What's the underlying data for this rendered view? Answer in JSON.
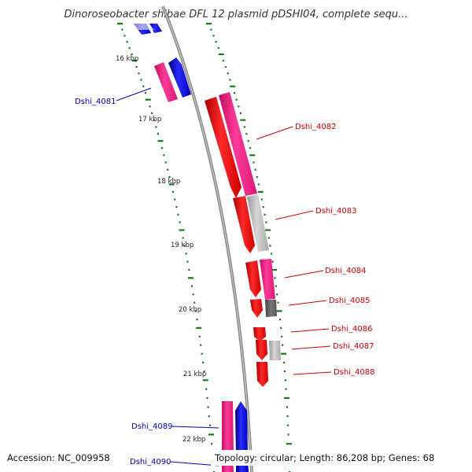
{
  "title": "Dinoroseobacter shibae DFL 12 plasmid pDSHI04, complete sequ...",
  "footer": {
    "accession": "Accession: NC_009958",
    "topology": "Topology: circular; Length: 86,208 bp; Genes: 68"
  },
  "scale_labels": [
    "16 kbp",
    "17 kbp",
    "18 kbp",
    "19 kbp",
    "20 kbp",
    "21 kbp",
    "22 kbp"
  ],
  "gene_labels": [
    {
      "id": "Dshi_4081",
      "strand": "minus"
    },
    {
      "id": "Dshi_4082",
      "strand": "plus"
    },
    {
      "id": "Dshi_4083",
      "strand": "plus"
    },
    {
      "id": "Dshi_4084",
      "strand": "plus"
    },
    {
      "id": "Dshi_4085",
      "strand": "plus"
    },
    {
      "id": "Dshi_4086",
      "strand": "plus"
    },
    {
      "id": "Dshi_4087",
      "strand": "plus"
    },
    {
      "id": "Dshi_4088",
      "strand": "plus"
    },
    {
      "id": "Dshi_4089",
      "strand": "minus"
    },
    {
      "id": "Dshi_4090",
      "strand": "minus"
    }
  ],
  "colors": {
    "plus_strand_label": "#cc0000",
    "minus_strand_label": "#0000bb",
    "cds_forward": "#ff0000",
    "cds_reverse": "#0000ff",
    "feature_pink": "#ff2288",
    "feature_grey": "#bbbbbb",
    "feature_dark_grey": "#666666",
    "backbone": "#888888",
    "gc_dots": "#1a7a1a"
  }
}
